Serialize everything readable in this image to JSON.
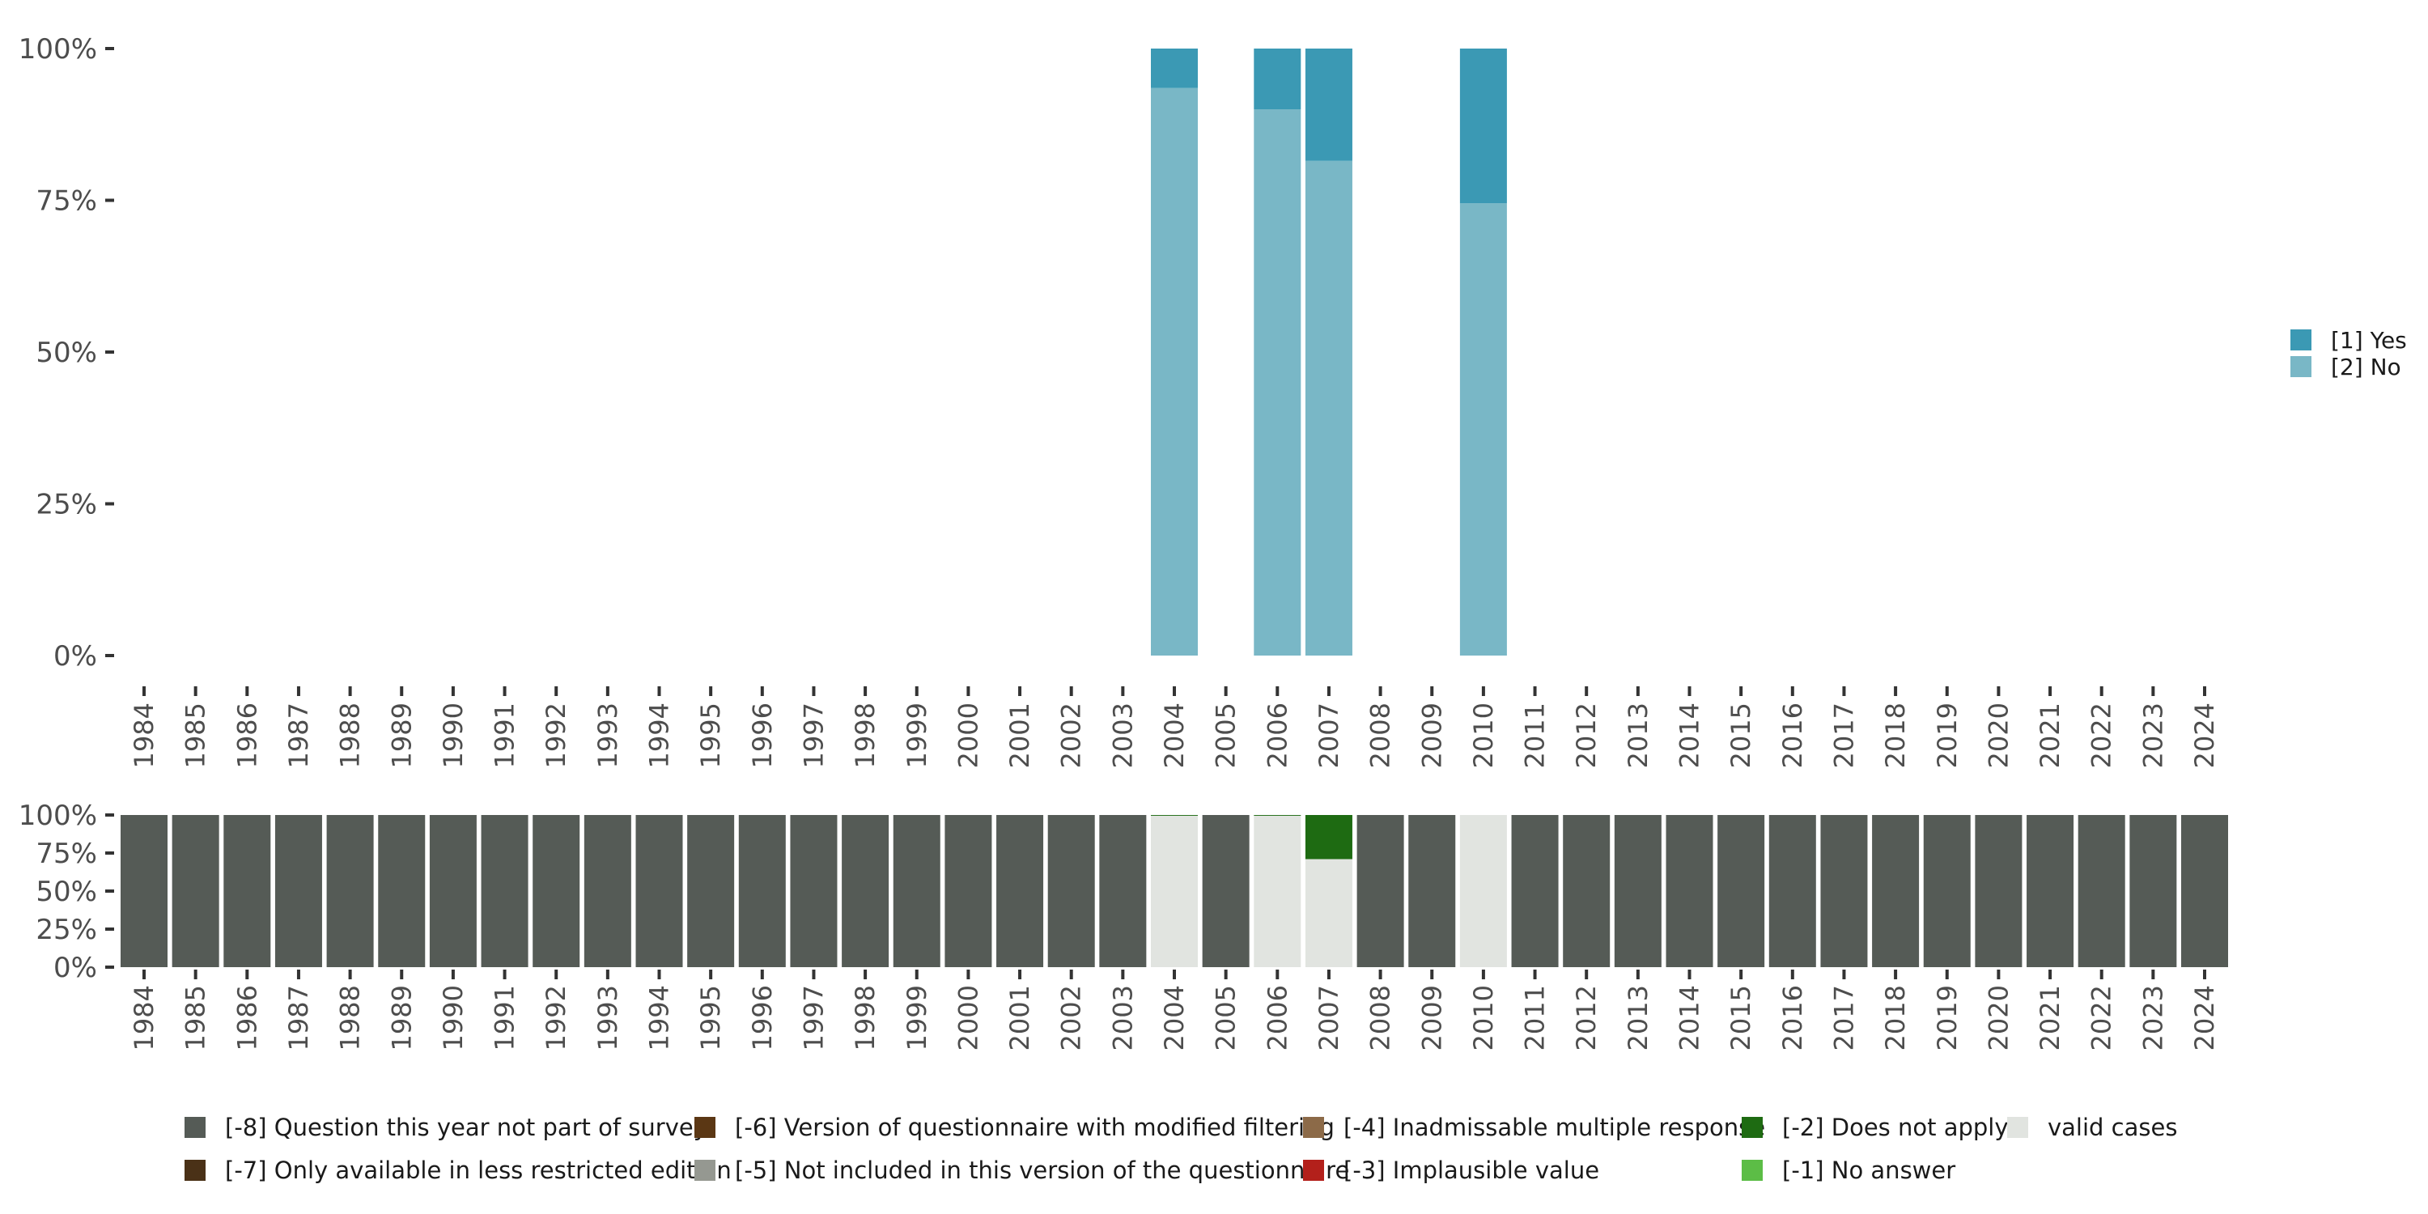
{
  "chart_data": [
    {
      "type": "bar",
      "stacked": true,
      "title": "",
      "xlabel": "",
      "ylabel": "",
      "ylim": [
        0,
        100
      ],
      "y_ticks": [
        "0%",
        "25%",
        "50%",
        "75%",
        "100%"
      ],
      "categories": [
        "1984",
        "1985",
        "1986",
        "1987",
        "1988",
        "1989",
        "1990",
        "1991",
        "1992",
        "1993",
        "1994",
        "1995",
        "1996",
        "1997",
        "1998",
        "1999",
        "2000",
        "2001",
        "2002",
        "2003",
        "2004",
        "2005",
        "2006",
        "2007",
        "2008",
        "2009",
        "2010",
        "2011",
        "2012",
        "2013",
        "2014",
        "2015",
        "2016",
        "2017",
        "2018",
        "2019",
        "2020",
        "2021",
        "2022",
        "2023",
        "2024"
      ],
      "series": [
        {
          "name": "[2] No",
          "color": "#79b7c6",
          "data": {
            "2004": 93.5,
            "2006": 90,
            "2007": 81.5,
            "2010": 74.5
          }
        },
        {
          "name": "[1] Yes",
          "color": "#3b99b4",
          "data": {
            "2004": 6.5,
            "2006": 10,
            "2007": 18.5,
            "2010": 25.5
          }
        }
      ],
      "legend": {
        "position": "right",
        "items": [
          "[1] Yes",
          "[2] No"
        ]
      }
    },
    {
      "type": "bar",
      "stacked": true,
      "title": "",
      "xlabel": "",
      "ylabel": "",
      "ylim": [
        0,
        100
      ],
      "y_ticks": [
        "0%",
        "25%",
        "50%",
        "75%",
        "100%"
      ],
      "categories": [
        "1984",
        "1985",
        "1986",
        "1987",
        "1988",
        "1989",
        "1990",
        "1991",
        "1992",
        "1993",
        "1994",
        "1995",
        "1996",
        "1997",
        "1998",
        "1999",
        "2000",
        "2001",
        "2002",
        "2003",
        "2004",
        "2005",
        "2006",
        "2007",
        "2008",
        "2009",
        "2010",
        "2011",
        "2012",
        "2013",
        "2014",
        "2015",
        "2016",
        "2017",
        "2018",
        "2019",
        "2020",
        "2021",
        "2022",
        "2023",
        "2024"
      ],
      "series": [
        {
          "name": "valid cases",
          "color": "#e1e4e0",
          "data": {
            "2004": 99.5,
            "2006": 99.5,
            "2007": 71,
            "2010": 100
          }
        },
        {
          "name": "[-2] Does not apply",
          "color": "#1e6b12",
          "data": {
            "2004": 0.5,
            "2006": 0.5,
            "2007": 29
          }
        },
        {
          "name": "[-8] Question this year not part of survey",
          "color": "#555b56",
          "data": {
            "1984": 100,
            "1985": 100,
            "1986": 100,
            "1987": 100,
            "1988": 100,
            "1989": 100,
            "1990": 100,
            "1991": 100,
            "1992": 100,
            "1993": 100,
            "1994": 100,
            "1995": 100,
            "1996": 100,
            "1997": 100,
            "1998": 100,
            "1999": 100,
            "2000": 100,
            "2001": 100,
            "2002": 100,
            "2003": 100,
            "2005": 100,
            "2008": 100,
            "2009": 100,
            "2011": 100,
            "2012": 100,
            "2013": 100,
            "2014": 100,
            "2015": 100,
            "2016": 100,
            "2017": 100,
            "2018": 100,
            "2019": 100,
            "2020": 100,
            "2021": 100,
            "2022": 100,
            "2023": 100,
            "2024": 100
          }
        }
      ],
      "legend": {
        "position": "bottom",
        "items": [
          {
            "label": "[-8] Question this year not part of survey",
            "color": "#555b56"
          },
          {
            "label": "[-6] Version of questionnaire with modified filtering",
            "color": "#5b3714"
          },
          {
            "label": "[-4] Inadmissable multiple response",
            "color": "#8c6a48"
          },
          {
            "label": "[-2] Does not apply",
            "color": "#1e6b12"
          },
          {
            "label": "valid cases",
            "color": "#e1e4e0"
          },
          {
            "label": "[-7] Only available in less restricted edition",
            "color": "#4a3117"
          },
          {
            "label": "[-5] Not included in this version of the questionnaire",
            "color": "#959891"
          },
          {
            "label": "[-3] Implausible value",
            "color": "#b3201b"
          },
          {
            "label": "[-1] No answer",
            "color": "#5cbd46"
          }
        ]
      }
    }
  ]
}
